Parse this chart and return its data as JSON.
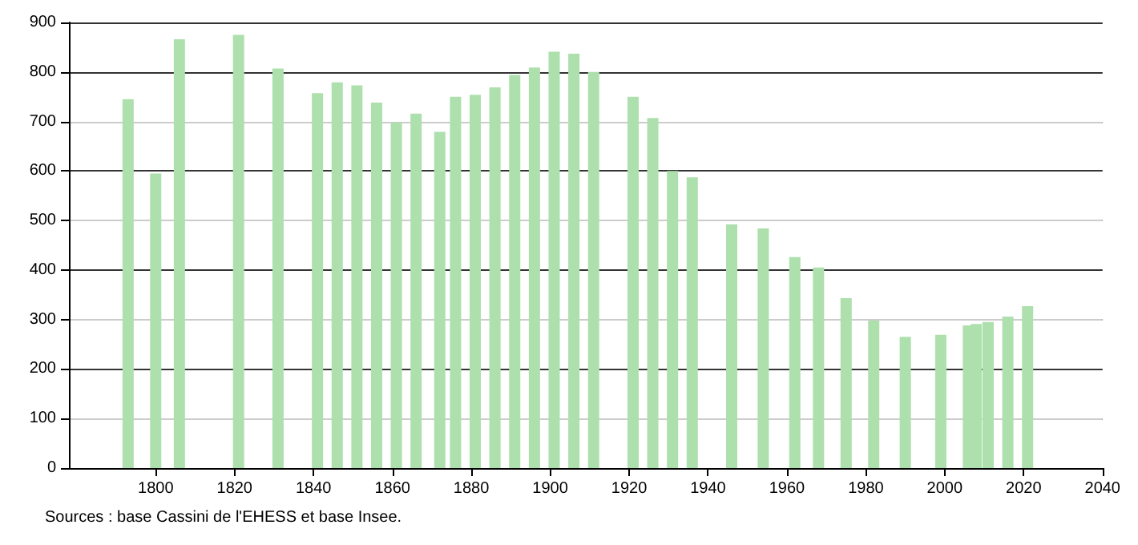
{
  "chart_data": {
    "type": "bar",
    "x": [
      1793,
      1800,
      1806,
      1821,
      1831,
      1841,
      1846,
      1851,
      1856,
      1861,
      1866,
      1872,
      1876,
      1881,
      1886,
      1891,
      1896,
      1901,
      1906,
      1911,
      1921,
      1926,
      1931,
      1936,
      1946,
      1954,
      1962,
      1968,
      1975,
      1982,
      1990,
      1999,
      2006,
      2008,
      2011,
      2016,
      2021
    ],
    "values": [
      745,
      595,
      866,
      875,
      807,
      757,
      779,
      773,
      738,
      698,
      716,
      679,
      750,
      754,
      769,
      794,
      809,
      841,
      837,
      800,
      750,
      707,
      600,
      587,
      492,
      484,
      426,
      405,
      343,
      298,
      265,
      269,
      288,
      291,
      295,
      306,
      327
    ],
    "color": "#ade0ad",
    "xlim": [
      1778,
      2040
    ],
    "xticks": [
      1800,
      1820,
      1840,
      1860,
      1880,
      1900,
      1920,
      1940,
      1960,
      1980,
      2000,
      2020,
      2040
    ],
    "ylim": [
      0,
      900
    ],
    "yticks": [
      0,
      100,
      200,
      300,
      400,
      500,
      600,
      700,
      800,
      900
    ],
    "grid": "y",
    "annotations": [
      "Sources : base Cassini de l'EHESS et base Insee."
    ]
  }
}
